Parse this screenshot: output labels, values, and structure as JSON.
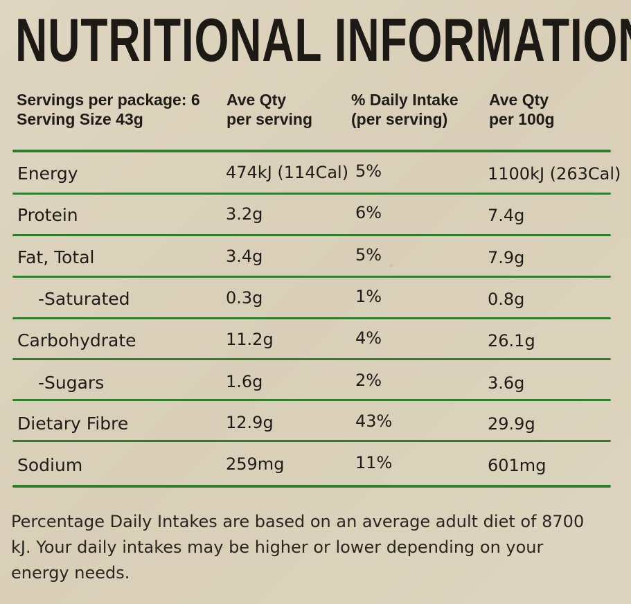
{
  "title": "NUTRITIONAL INFORMATION",
  "header": {
    "servings_per_package": "Servings per package: 6",
    "serving_size": "Serving Size 43g",
    "col_serving_1": "Ave Qty",
    "col_serving_2": "per serving",
    "col_di_1": "% Daily Intake",
    "col_di_2": "(per serving)",
    "col_100g_1": "Ave Qty",
    "col_100g_2": "per 100g"
  },
  "rows": [
    {
      "nutrient": "Energy",
      "per_serving": "474kJ (114Cal)",
      "daily_intake": "5%",
      "per_100g": "1100kJ (263Cal)"
    },
    {
      "nutrient": "Protein",
      "per_serving": "3.2g",
      "daily_intake": "6%",
      "per_100g": "7.4g"
    },
    {
      "nutrient": "Fat, Total",
      "per_serving": "3.4g",
      "daily_intake": "5%",
      "per_100g": "7.9g"
    },
    {
      "nutrient": "-Saturated",
      "per_serving": "0.3g",
      "daily_intake": "1%",
      "per_100g": "0.8g"
    },
    {
      "nutrient": "Carbohydrate",
      "per_serving": "11.2g",
      "daily_intake": "4%",
      "per_100g": "26.1g"
    },
    {
      "nutrient": "-Sugars",
      "per_serving": "1.6g",
      "daily_intake": "2%",
      "per_100g": "3.6g"
    },
    {
      "nutrient": "Dietary Fibre",
      "per_serving": "12.9g",
      "daily_intake": "43%",
      "per_100g": "29.9g"
    },
    {
      "nutrient": "Sodium",
      "per_serving": "259mg",
      "daily_intake": "11%",
      "per_100g": "601mg"
    }
  ],
  "footnote": "Percentage Daily Intakes are based on an average adult diet of 8700 kJ. Your daily intakes may be higher or lower depending on your energy needs.",
  "colors": {
    "rule": "#2f7d2d",
    "background": "#dcd3bd",
    "text": "#1f1c17"
  }
}
